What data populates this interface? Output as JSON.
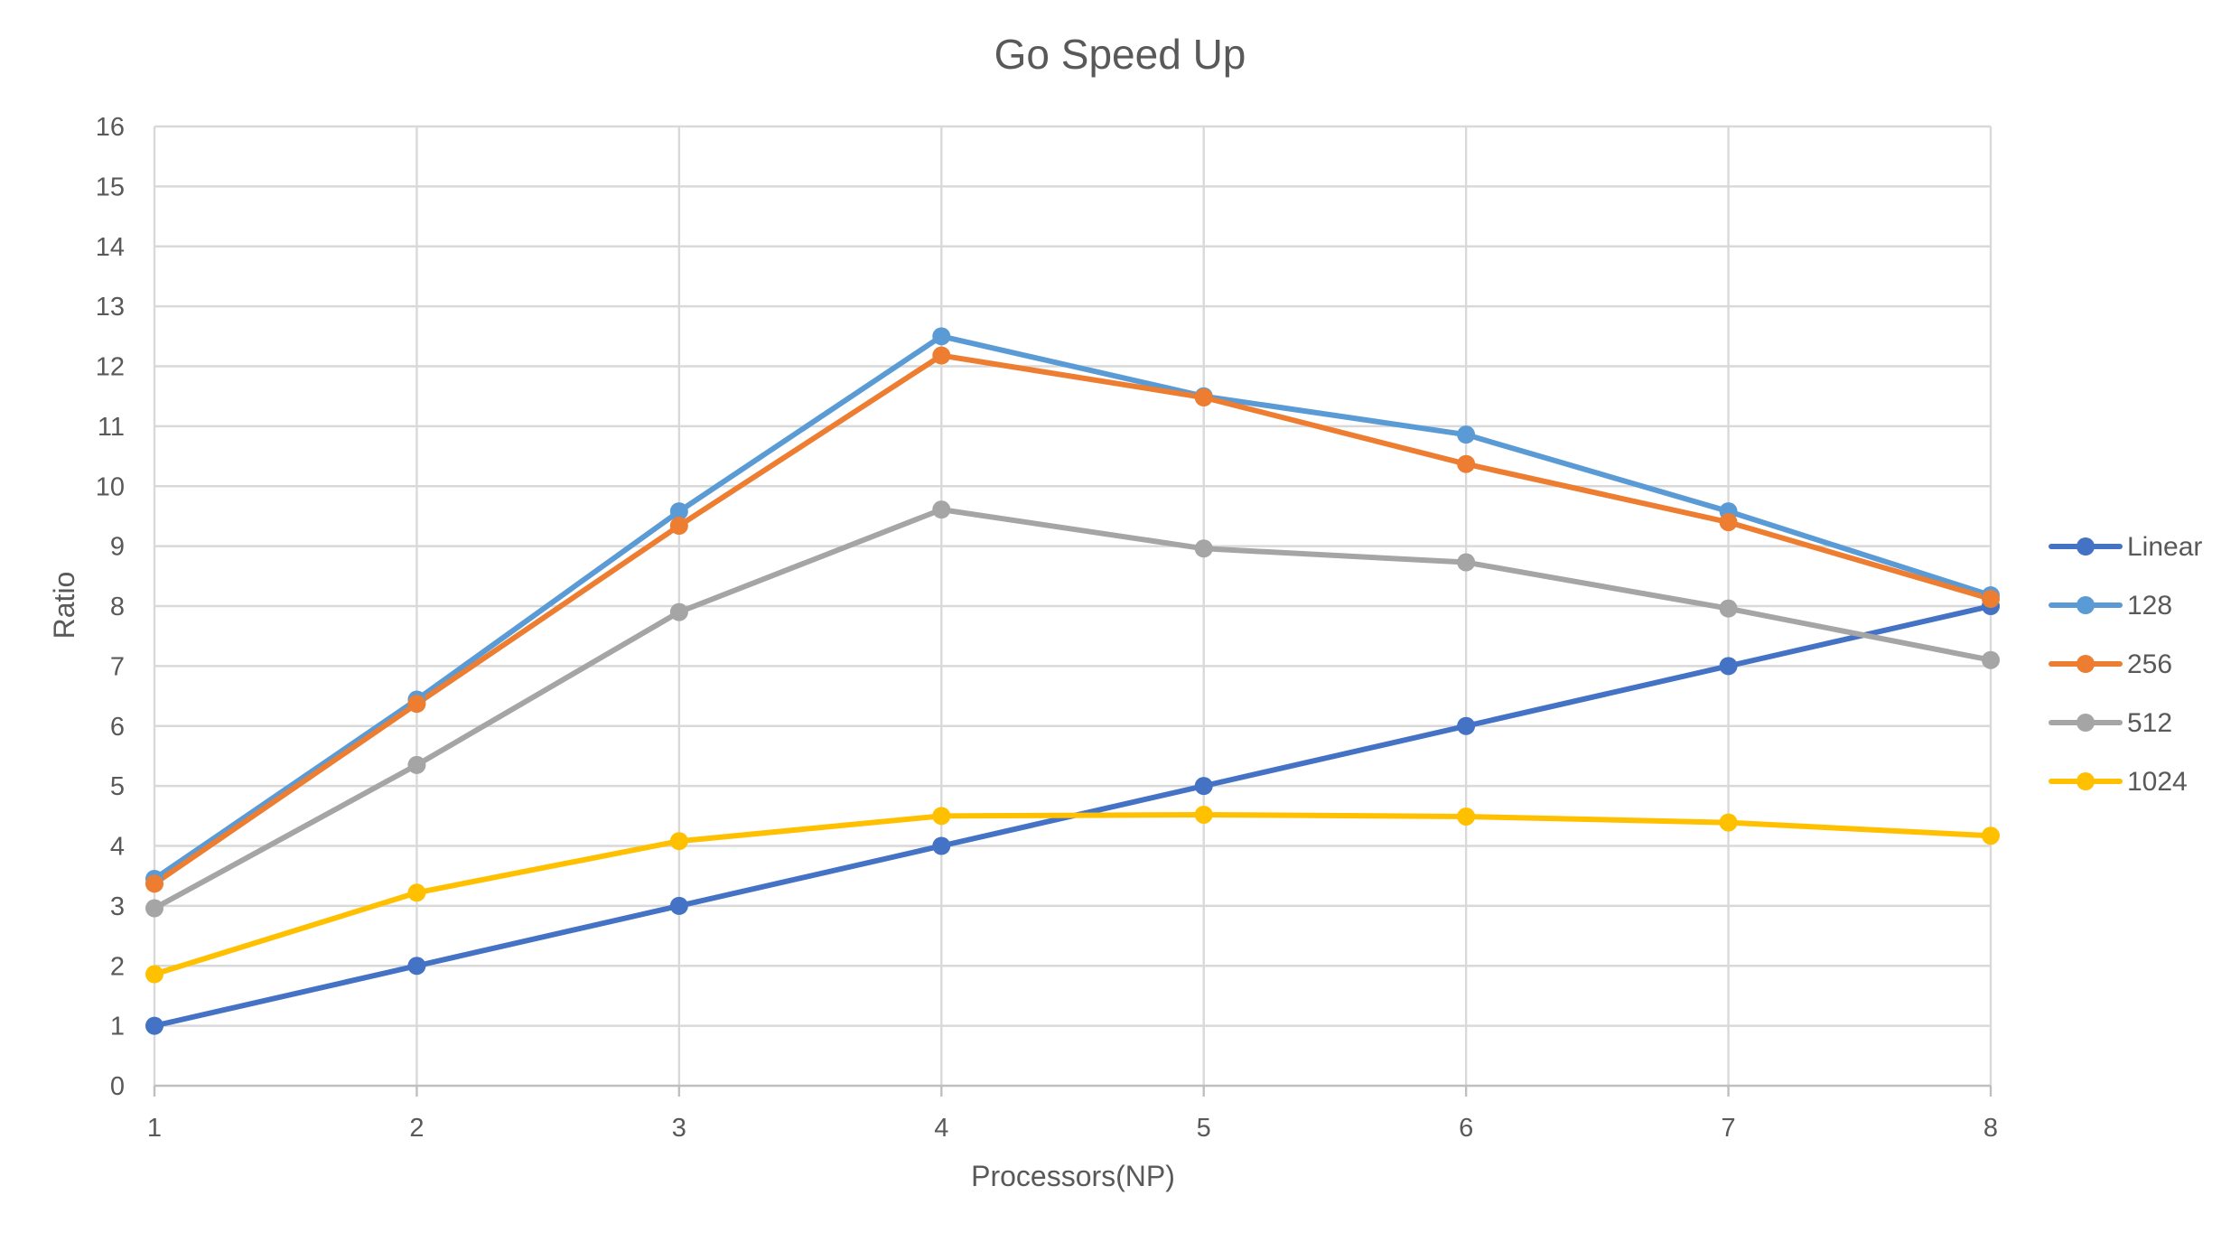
{
  "chart_data": {
    "type": "line",
    "title": "Go Speed Up",
    "xlabel": "Processors(NP)",
    "ylabel": "Ratio",
    "x": [
      1,
      2,
      3,
      4,
      5,
      6,
      7,
      8
    ],
    "ylim": [
      0,
      16
    ],
    "yticks": [
      0,
      1,
      2,
      3,
      4,
      5,
      6,
      7,
      8,
      9,
      10,
      11,
      12,
      13,
      14,
      15,
      16
    ],
    "grid": true,
    "legend": "right",
    "series": [
      {
        "name": "Linear",
        "color": "#4472c4",
        "values": [
          1,
          2,
          3,
          4,
          5,
          6,
          7,
          8
        ]
      },
      {
        "name": "128",
        "color": "#5b9bd5",
        "values": [
          3.45,
          6.44,
          9.58,
          12.5,
          11.5,
          10.86,
          9.58,
          8.18
        ]
      },
      {
        "name": "256",
        "color": "#ed7d31",
        "values": [
          3.37,
          6.37,
          9.34,
          12.18,
          11.48,
          10.37,
          9.4,
          8.12
        ]
      },
      {
        "name": "512",
        "color": "#a5a5a5",
        "values": [
          2.96,
          5.35,
          7.9,
          9.61,
          8.96,
          8.73,
          7.96,
          7.1
        ]
      },
      {
        "name": "1024",
        "color": "#ffc000",
        "values": [
          1.86,
          3.22,
          4.08,
          4.5,
          4.52,
          4.49,
          4.39,
          4.17
        ]
      }
    ]
  }
}
